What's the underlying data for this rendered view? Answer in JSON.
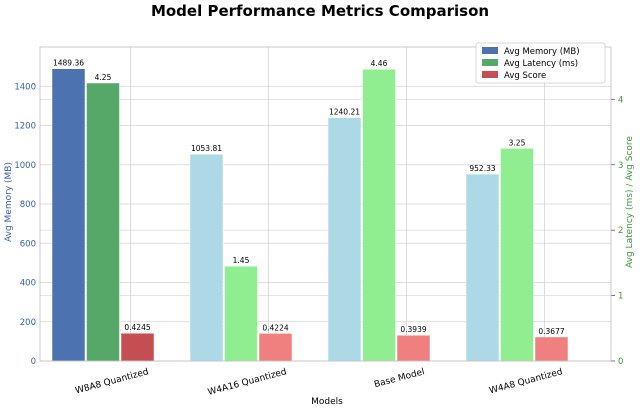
{
  "chart_data": {
    "type": "bar",
    "title": "Model Performance Metrics Comparison",
    "xlabel": "Models",
    "ylabel_left": "Avg Memory (MB)",
    "ylabel_right": "Avg Latency (ms) / Avg Score",
    "categories": [
      "W8A8 Quantized",
      "W4A16 Quantized",
      "Base Model",
      "W4A8 Quantized"
    ],
    "ylim_left": [
      0,
      1600
    ],
    "yticks_left": [
      0,
      200,
      400,
      600,
      800,
      1000,
      1200,
      1400
    ],
    "ylim_right": [
      0,
      4.8
    ],
    "yticks_right": [
      0,
      1,
      2,
      3,
      4
    ],
    "grid": true,
    "legend_position": "top-right",
    "series": [
      {
        "name": "Avg Memory (MB)",
        "axis": "left",
        "values": [
          1489.36,
          1053.81,
          1240.21,
          952.33
        ],
        "labels": [
          "1489.36",
          "1053.81",
          "1240.21",
          "952.33"
        ],
        "legend_color": "#4c72b0",
        "colors": [
          "#4c72b0",
          "#add8e6",
          "#add8e6",
          "#add8e6"
        ]
      },
      {
        "name": "Avg Latency (ms)",
        "axis": "right",
        "values": [
          4.25,
          1.45,
          4.46,
          3.25
        ],
        "labels": [
          "4.25",
          "1.45",
          "4.46",
          "3.25"
        ],
        "legend_color": "#55a868",
        "colors": [
          "#55a868",
          "#90ee90",
          "#90ee90",
          "#90ee90"
        ]
      },
      {
        "name": "Avg Score",
        "axis": "right",
        "values": [
          0.4245,
          0.4224,
          0.3939,
          0.3677
        ],
        "labels": [
          "0.4245",
          "0.4224",
          "0.3939",
          "0.3677"
        ],
        "legend_color": "#c44e52",
        "colors": [
          "#c44e52",
          "#f08080",
          "#f08080",
          "#f08080"
        ]
      }
    ]
  }
}
